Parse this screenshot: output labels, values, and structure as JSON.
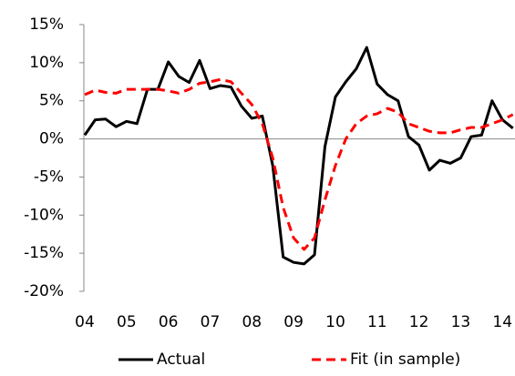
{
  "chart_data": {
    "type": "line",
    "x": [
      2004,
      2004.25,
      2004.5,
      2004.75,
      2005,
      2005.25,
      2005.5,
      2005.75,
      2006,
      2006.25,
      2006.5,
      2006.75,
      2007,
      2007.25,
      2007.5,
      2007.75,
      2008,
      2008.25,
      2008.5,
      2008.75,
      2009,
      2009.25,
      2009.5,
      2009.75,
      2010,
      2010.25,
      2010.5,
      2010.75,
      2011,
      2011.25,
      2011.5,
      2011.75,
      2012,
      2012.25,
      2012.5,
      2012.75,
      2013,
      2013.25,
      2013.5,
      2013.75,
      2014,
      2014.25
    ],
    "series": [
      {
        "name": "Actual",
        "color": "#000000",
        "dash": false,
        "values": [
          0.5,
          2.5,
          2.6,
          1.6,
          2.3,
          2.0,
          6.5,
          6.5,
          10.1,
          8.2,
          7.4,
          10.3,
          6.6,
          7.0,
          6.8,
          4.3,
          2.7,
          3.0,
          -3.5,
          -15.5,
          -16.2,
          -16.4,
          -15.2,
          -1.0,
          5.5,
          7.5,
          9.2,
          12.0,
          7.2,
          5.8,
          5.0,
          0.3,
          -0.8,
          -4.1,
          -2.8,
          -3.2,
          -2.5,
          0.3,
          0.5,
          5.0,
          2.5,
          1.4
        ]
      },
      {
        "name": "Fit (in sample)",
        "color": "#ff0000",
        "dash": true,
        "values": [
          5.8,
          6.4,
          6.1,
          6.0,
          6.5,
          6.5,
          6.5,
          6.5,
          6.3,
          6.0,
          6.5,
          7.3,
          7.5,
          7.8,
          7.5,
          6.0,
          4.5,
          2.0,
          -2.5,
          -9.0,
          -13.0,
          -14.5,
          -13.0,
          -8.0,
          -3.5,
          0.0,
          2.0,
          3.0,
          3.3,
          4.0,
          3.5,
          2.0,
          1.5,
          1.0,
          0.8,
          0.8,
          1.2,
          1.5,
          1.5,
          2.0,
          2.5,
          3.2
        ]
      }
    ],
    "xlim": [
      2004,
      2014.3
    ],
    "xticks": [
      {
        "value": 2004,
        "label": "04"
      },
      {
        "value": 2005,
        "label": "05"
      },
      {
        "value": 2006,
        "label": "06"
      },
      {
        "value": 2007,
        "label": "07"
      },
      {
        "value": 2008,
        "label": "08"
      },
      {
        "value": 2009,
        "label": "09"
      },
      {
        "value": 2010,
        "label": "10"
      },
      {
        "value": 2011,
        "label": "11"
      },
      {
        "value": 2012,
        "label": "12"
      },
      {
        "value": 2013,
        "label": "13"
      },
      {
        "value": 2014,
        "label": "14"
      }
    ],
    "ylim": [
      -20,
      15
    ],
    "yticks": [
      {
        "value": -20,
        "label": "-20%"
      },
      {
        "value": -15,
        "label": "-15%"
      },
      {
        "value": -10,
        "label": "-10%"
      },
      {
        "value": -5,
        "label": "-5%"
      },
      {
        "value": 0,
        "label": "0%"
      },
      {
        "value": 5,
        "label": "5%"
      },
      {
        "value": 10,
        "label": "10%"
      },
      {
        "value": 15,
        "label": "15%"
      }
    ],
    "grid": false,
    "legend": "bottom"
  }
}
